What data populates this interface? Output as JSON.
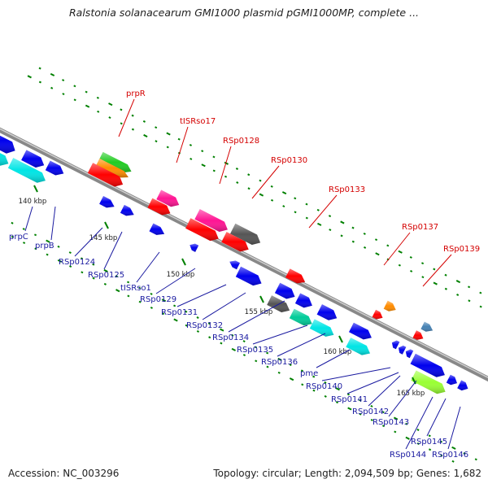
{
  "title": "Ralstonia solanacearum GMI1000 plasmid pGMI1000MP, complete ...",
  "footer": {
    "accession": "Accession: NC_003296",
    "summary": "Topology: circular; Length: 2,094,509 bp; Genes: 1,682"
  },
  "ticks": [
    "140 kbp",
    "145 kbp",
    "150 kbp",
    "155 kbp",
    "160 kbp",
    "165 kbp"
  ],
  "labels_top": [
    "prpR",
    "tISRso17",
    "RSp0128",
    "RSp0130",
    "RSp0133",
    "RSp0137",
    "RSp0139"
  ],
  "labels_bottom": [
    "prpC",
    "prpB",
    "RSp0124",
    "RSp0125",
    "tISRso1",
    "RSp0129",
    "RSp0131",
    "RSp0132",
    "RSp0134",
    "RSp0135",
    "RSp0136",
    "pme",
    "RSp0140",
    "RSp0141",
    "RSp0142",
    "RSp0143",
    "RSp0144",
    "RSp0145",
    "RSp0146"
  ],
  "colors": {
    "backbone": "#888888",
    "red": "#ff0000",
    "blue": "#0000ee",
    "cyan": "#00e5e5",
    "pink": "#ff1493",
    "gray": "#555555",
    "green": "#22cc22",
    "orange": "#ff8c00",
    "lime": "#99ff33",
    "teal": "#00cc99",
    "steel": "#4682b4",
    "tick": "#008000"
  }
}
